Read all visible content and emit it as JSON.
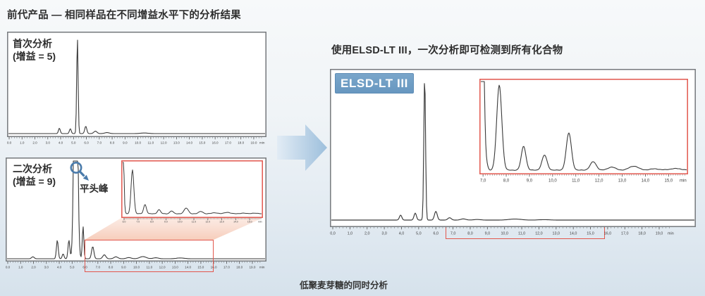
{
  "titles": {
    "left": "前代产品 — 相同样品在不同增益水平下的分析结果",
    "right": "使用ELSD-LT III，一次分析即可检测到所有化合物",
    "caption": "低聚麦芽糖的同时分析"
  },
  "badge": {
    "label": "ELSD-LT III"
  },
  "annotations": {
    "first_run_line1": "首次分析",
    "first_run_line2": "(增益 = 5)",
    "second_run_line1": "二次分析",
    "second_run_line2": "(增益 = 9)",
    "flat_top_peak": "平头峰"
  },
  "colors": {
    "accent_red": "#e2574d",
    "badge_blue": "#6f9dc2",
    "magnifier_blue": "#4a7bab",
    "arrow_blue_light": "#e2ecf5",
    "arrow_blue_dark": "#9dbfdc",
    "connector_salmon": "#ee9b77",
    "connector_salmon_light": "#f5c9b6",
    "curve": "#3a3a3a",
    "panel_border": "#75787c",
    "tick_text": "#3c3c3c"
  },
  "chart_data": [
    {
      "id": "prev_run1",
      "type": "line",
      "title": "首次分析 (增益 = 5)",
      "frame": "gray",
      "x_range": [
        0,
        19.6
      ],
      "x_tick_labels": [
        "0.0",
        "1.0",
        "2.0",
        "3.0",
        "4.0",
        "5.0",
        "6.0",
        "7.0",
        "8.0",
        "9.0",
        "10.0",
        "11.0",
        "12.0",
        "13.0",
        "14.0",
        "15.0",
        "16.0",
        "17.0",
        "18.0",
        "19.0"
      ],
      "x_unit": "min",
      "peaks": [
        {
          "x": 3.9,
          "h": 0.055,
          "w": 0.07
        },
        {
          "x": 4.75,
          "h": 0.05,
          "w": 0.07
        },
        {
          "x": 5.3,
          "h": 0.98,
          "w": 0.055
        },
        {
          "x": 5.95,
          "h": 0.075,
          "w": 0.08
        },
        {
          "x": 6.7,
          "h": 0.025,
          "w": 0.12
        },
        {
          "x": 7.6,
          "h": 0.01,
          "w": 0.18
        },
        {
          "x": 10.5,
          "h": 0.006,
          "w": 0.3
        }
      ]
    },
    {
      "id": "prev_run2",
      "type": "line",
      "title": "二次分析 (增益 = 9)",
      "frame": "gray",
      "x_range": [
        0,
        19.6
      ],
      "x_tick_labels": [
        "0.0",
        "1.0",
        "2.0",
        "3.0",
        "4.0",
        "5.0",
        "6.0",
        "7.0",
        "8.0",
        "9.0",
        "10.0",
        "11.0",
        "12.0",
        "13.0",
        "14.0",
        "15.0",
        "16.0",
        "17.0",
        "18.0",
        "19.0"
      ],
      "x_unit": "min",
      "peaks": [
        {
          "x": 1.95,
          "h": 0.02,
          "w": 0.1
        },
        {
          "x": 3.85,
          "h": 0.19,
          "w": 0.07
        },
        {
          "x": 4.3,
          "h": 0.05,
          "w": 0.07
        },
        {
          "x": 4.75,
          "h": 0.19,
          "w": 0.07
        },
        {
          "x": 5.28,
          "h": 3.5,
          "w": 0.12,
          "clipped": true
        },
        {
          "x": 5.85,
          "h": 0.33,
          "w": 0.06
        },
        {
          "x": 6.6,
          "h": 0.125,
          "w": 0.09
        },
        {
          "x": 7.5,
          "h": 0.04,
          "w": 0.12
        },
        {
          "x": 8.4,
          "h": 0.02,
          "w": 0.15
        },
        {
          "x": 9.4,
          "h": 0.012,
          "w": 0.18
        },
        {
          "x": 10.5,
          "h": 0.022,
          "w": 0.25
        },
        {
          "x": 11.5,
          "h": 0.01,
          "w": 0.2
        },
        {
          "x": 13.4,
          "h": 0.008,
          "w": 0.3
        }
      ]
    },
    {
      "id": "prev_inset",
      "type": "line",
      "title": "二次分析放大区域 6.0–15.8 min",
      "frame": "red",
      "x_range": [
        5.95,
        15.85
      ],
      "x_tick_labels": [
        "6.0",
        "7.0",
        "8.0",
        "9.0",
        "10.0",
        "11.0",
        "12.0",
        "13.0",
        "14.0",
        "15.0"
      ],
      "x_unit": "min",
      "peaks": [
        {
          "x": 5.8,
          "h": 9,
          "w": 0.09,
          "clipped": true
        },
        {
          "x": 6.6,
          "h": 0.86,
          "w": 0.1
        },
        {
          "x": 7.5,
          "h": 0.18,
          "w": 0.1
        },
        {
          "x": 8.5,
          "h": 0.08,
          "w": 0.11
        },
        {
          "x": 9.4,
          "h": 0.055,
          "w": 0.12
        },
        {
          "x": 10.45,
          "h": 0.11,
          "w": 0.15
        },
        {
          "x": 11.5,
          "h": 0.045,
          "w": 0.15
        },
        {
          "x": 12.5,
          "h": 0.02,
          "w": 0.2
        },
        {
          "x": 13.4,
          "h": 0.028,
          "w": 0.2
        },
        {
          "x": 14.5,
          "h": 0.012,
          "w": 0.2
        },
        {
          "x": 15.3,
          "h": 0.012,
          "w": 0.2
        }
      ]
    },
    {
      "id": "new_main",
      "type": "line",
      "title": "ELSD-LT III 一次分析",
      "frame": "gray",
      "x_range": [
        0,
        19.6
      ],
      "x_tick_labels": [
        "0,0",
        "1,0",
        "2,0",
        "3,0",
        "4,0",
        "5,0",
        "6,0",
        "7,0",
        "8,0",
        "9,0",
        "10,0",
        "11,0",
        "12,0",
        "13,0",
        "14,0",
        "15,0",
        "16,0",
        "17,0",
        "18,0",
        "19,0"
      ],
      "x_unit": "min",
      "peaks": [
        {
          "x": 3.95,
          "h": 0.034,
          "w": 0.07
        },
        {
          "x": 4.8,
          "h": 0.048,
          "w": 0.07
        },
        {
          "x": 5.35,
          "h": 0.985,
          "w": 0.05
        },
        {
          "x": 6.0,
          "h": 0.06,
          "w": 0.08
        },
        {
          "x": 6.8,
          "h": 0.016,
          "w": 0.1
        },
        {
          "x": 7.6,
          "h": 0.008,
          "w": 0.15
        },
        {
          "x": 8.4,
          "h": 0.004,
          "w": 0.2
        },
        {
          "x": 10.6,
          "h": 0.007,
          "w": 0.35
        },
        {
          "x": 12.3,
          "h": 0.003,
          "w": 0.3
        }
      ]
    },
    {
      "id": "new_inset",
      "type": "line",
      "title": "ELSD-LT III 放大区域 7.0–15.8 min",
      "frame": "red",
      "x_range": [
        6.95,
        15.85
      ],
      "x_tick_labels": [
        "7,0",
        "8,0",
        "9,0",
        "10,0",
        "11,0",
        "12,0",
        "13,0",
        "14,0",
        "15,0"
      ],
      "x_unit": "min",
      "peaks": [
        {
          "x": 6.85,
          "h": 9,
          "w": 0.1,
          "clipped": true
        },
        {
          "x": 7.15,
          "h": 0.05,
          "w": 0.06
        },
        {
          "x": 7.7,
          "h": 0.96,
          "w": 0.11
        },
        {
          "x": 8.75,
          "h": 0.27,
          "w": 0.1
        },
        {
          "x": 9.65,
          "h": 0.17,
          "w": 0.11
        },
        {
          "x": 10.7,
          "h": 0.42,
          "w": 0.11
        },
        {
          "x": 11.75,
          "h": 0.095,
          "w": 0.13
        },
        {
          "x": 12.55,
          "h": 0.035,
          "w": 0.16
        },
        {
          "x": 13.5,
          "h": 0.045,
          "w": 0.2
        },
        {
          "x": 14.4,
          "h": 0.015,
          "w": 0.2
        },
        {
          "x": 15.3,
          "h": 0.018,
          "w": 0.25
        }
      ]
    }
  ]
}
